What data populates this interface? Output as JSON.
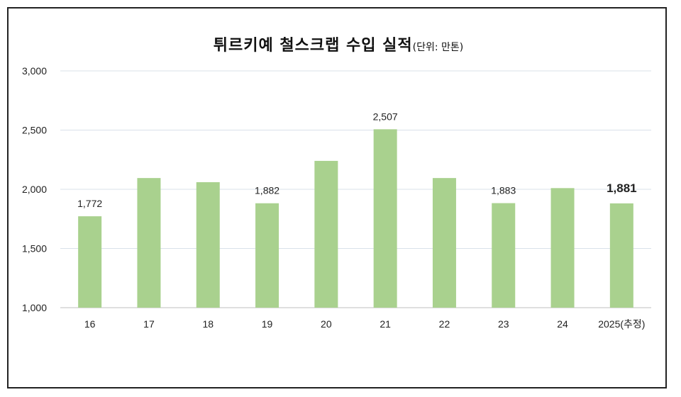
{
  "title": "튀르키예 철스크랩 수입 실적",
  "unit_note": "(단위: 만톤)",
  "colors": {
    "bar": "#a9d18e",
    "grid": "#d9e1ea",
    "axis": "#bfbfbf"
  },
  "chart_data": {
    "type": "bar",
    "title": "튀르키예 철스크랩 수입 실적",
    "xlabel": "",
    "ylabel": "",
    "ylim": [
      1000,
      3000
    ],
    "yticks": [
      "1,000",
      "1,500",
      "2,000",
      "2,500",
      "3,000"
    ],
    "ytick_values": [
      1000,
      1500,
      2000,
      2500,
      3000
    ],
    "grid": true,
    "categories": [
      "16",
      "17",
      "18",
      "19",
      "20",
      "21",
      "22",
      "23",
      "24",
      "2025(추정)"
    ],
    "values": [
      1772,
      2095,
      2060,
      1882,
      2240,
      2507,
      2095,
      1883,
      2010,
      1881
    ],
    "data_labels": [
      "1,772",
      "",
      "",
      "1,882",
      "",
      "2,507",
      "",
      "1,883",
      "",
      "1,881"
    ],
    "bold_label_index": 9
  }
}
